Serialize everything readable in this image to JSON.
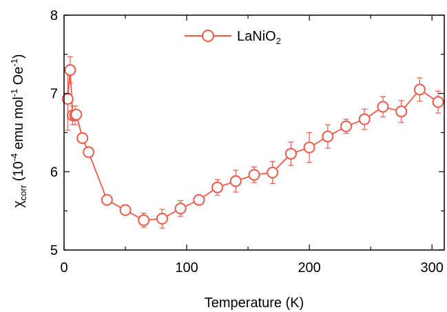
{
  "chart_data": {
    "type": "scatter",
    "xlabel": "Temperature (K)",
    "ylabel": {
      "symbol": "χ",
      "subscript": "corr",
      "units_open": " (10",
      "units_exp1": "-4",
      "units_mid": " emu mol",
      "units_exp2": "-1",
      "units_mid2": " Oe",
      "units_exp3": "-1",
      "units_close": ")"
    },
    "xlim": [
      0,
      310
    ],
    "ylim": [
      5,
      8
    ],
    "xticks": [
      0,
      100,
      200,
      300
    ],
    "xtick_labels": [
      "0",
      "100",
      "200",
      "300"
    ],
    "yticks": [
      5,
      6,
      7,
      8
    ],
    "ytick_labels": [
      "5",
      "6",
      "7",
      "8"
    ],
    "grid": false,
    "legend_position": "top-center",
    "series": [
      {
        "name": "LaNiO2",
        "name_base": "LaNiO",
        "name_sub": "2",
        "color": "#ee5a4a",
        "marker": "open-circle",
        "line": true,
        "x": [
          3,
          5,
          7,
          9,
          10,
          15,
          20,
          35,
          50,
          65,
          80,
          95,
          110,
          125,
          140,
          155,
          170,
          185,
          200,
          215,
          230,
          245,
          260,
          275,
          290,
          305
        ],
        "y": [
          6.93,
          7.3,
          6.72,
          6.72,
          6.73,
          6.43,
          6.25,
          5.64,
          5.51,
          5.38,
          5.4,
          5.53,
          5.64,
          5.8,
          5.88,
          5.96,
          5.99,
          6.23,
          6.31,
          6.45,
          6.58,
          6.67,
          6.83,
          6.77,
          7.05,
          6.89
        ],
        "yerr": [
          0.4,
          0.17,
          0.12,
          0.12,
          0.05,
          0.05,
          0.04,
          0.05,
          0.03,
          0.09,
          0.12,
          0.1,
          0.04,
          0.1,
          0.14,
          0.1,
          0.14,
          0.15,
          0.19,
          0.15,
          0.09,
          0.13,
          0.13,
          0.14,
          0.15,
          0.14
        ]
      }
    ]
  }
}
